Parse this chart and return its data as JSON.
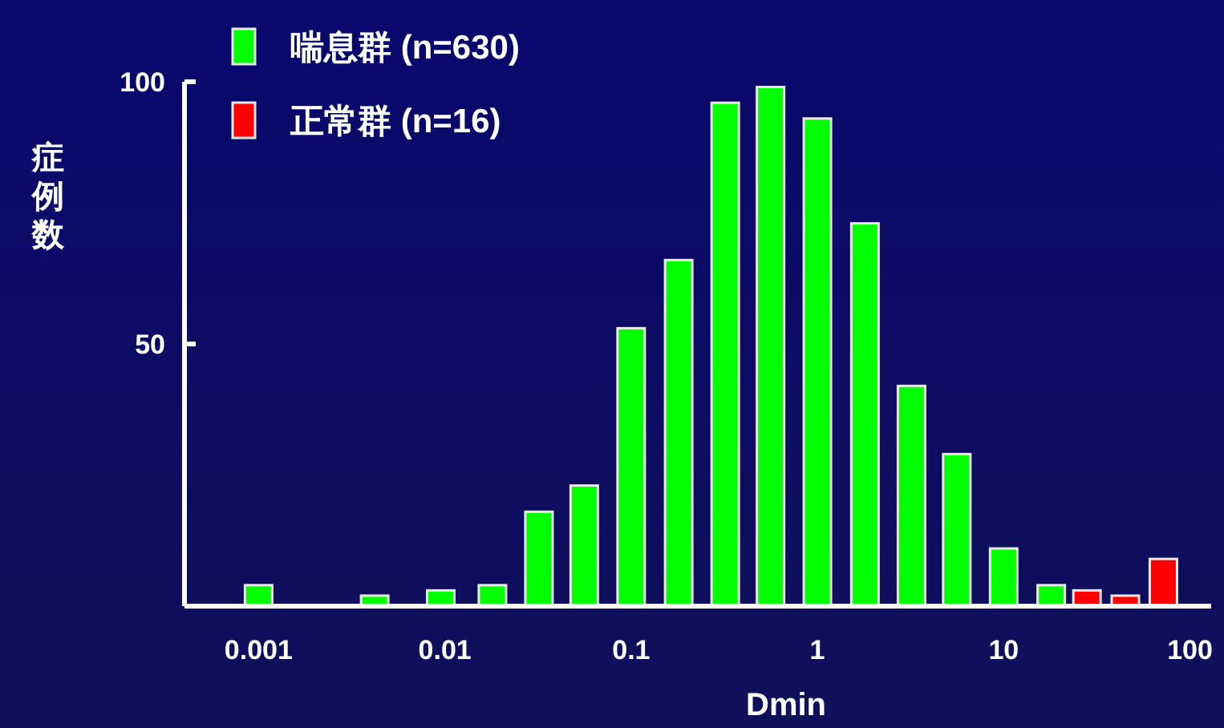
{
  "chart_data": {
    "type": "bar",
    "xlabel": "Dmin",
    "ylabel": "症例数",
    "log": "x",
    "xlim": [
      0.0004,
      130
    ],
    "xticks": [
      0.001,
      0.01,
      0.1,
      1,
      10,
      100
    ],
    "ylim": [
      0,
      100
    ],
    "yticks": [
      50,
      100
    ],
    "grid": false,
    "legend": "top left",
    "series": [
      {
        "name": "喘息群 (n=630)",
        "color": "#00ff00",
        "x": [
          0.001,
          0.0042,
          0.0095,
          0.018,
          0.032,
          0.056,
          0.1,
          0.18,
          0.32,
          0.56,
          1,
          1.8,
          3.2,
          5.6,
          10,
          18
        ],
        "values": [
          4,
          2,
          3,
          4,
          18,
          23,
          53,
          66,
          96,
          99,
          93,
          73,
          42,
          29,
          11,
          4
        ]
      },
      {
        "name": "正常群 (n=16)",
        "color": "#ff0000",
        "x": [
          28,
          45,
          72
        ],
        "values": [
          3,
          2,
          9
        ]
      }
    ]
  }
}
